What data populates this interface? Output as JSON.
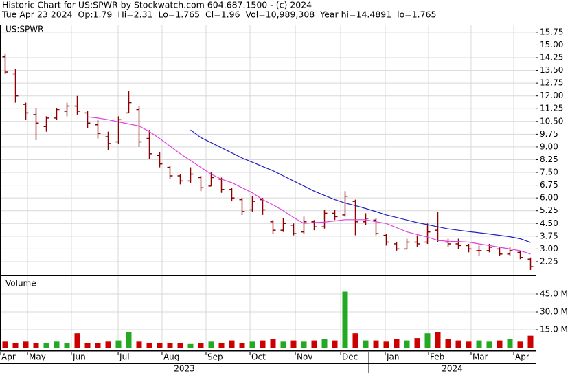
{
  "header": {
    "title": "Historic Chart for US:SPWR by Stockwatch.com 604.687.1500 - (c) 2024",
    "quote": "Tue Apr 23 2024  Op:1.79  Hi=2.31  Lo=1.765  Cl=1.96  Vol=10,989,308  Year hi=14.4891  lo=1.765"
  },
  "chart_data": [
    {
      "type": "ohlc",
      "title": "US:SPWR",
      "color": "#8b0000",
      "grid": true,
      "x": [
        0.5,
        1.5,
        2.5,
        3.5,
        4.5,
        5.5,
        6.5,
        7.5,
        8.5,
        9.5,
        10.5,
        11.5,
        12.5,
        13.5,
        14.5,
        15.5,
        16.5,
        17.5,
        18.5,
        19.5,
        20.5,
        21.5,
        22.5,
        23.5,
        24.5,
        25.5,
        26.5,
        27.5,
        28.5,
        29.5,
        30.5,
        31.5,
        32.5,
        33.5,
        34.5,
        35.5,
        36.5,
        37.5,
        38.5,
        39.5,
        40.5,
        41.5,
        42.5,
        43.5,
        44.5,
        45.5,
        46.5,
        47.5,
        48.5,
        49.5,
        50.5,
        51.5
      ],
      "open": [
        14.3,
        13.3,
        11.5,
        10.9,
        10.2,
        10.7,
        11.1,
        11.4,
        11.0,
        10.3,
        9.6,
        9.3,
        11.0,
        11.2,
        9.5,
        8.5,
        7.8,
        7.3,
        7.0,
        7.2,
        6.7,
        7.1,
        6.5,
        5.9,
        5.3,
        5.9,
        4.6,
        4.1,
        4.4,
        4.0,
        4.6,
        4.3,
        5.1,
        5.0,
        5.8,
        4.6,
        4.7,
        3.8,
        3.3,
        3.0,
        3.4,
        3.4,
        4.1,
        3.4,
        3.3,
        3.2,
        2.9,
        2.9,
        3.0,
        2.7,
        2.8,
        2.4
      ],
      "high": [
        14.5,
        13.6,
        11.6,
        11.3,
        10.8,
        11.3,
        11.6,
        12.0,
        11.1,
        10.6,
        9.9,
        10.8,
        12.3,
        11.4,
        10.0,
        8.7,
        7.9,
        7.4,
        7.8,
        7.3,
        7.5,
        7.2,
        6.6,
        6.0,
        6.1,
        6.0,
        4.7,
        4.8,
        4.5,
        4.9,
        4.7,
        5.3,
        5.3,
        6.4,
        5.9,
        5.1,
        4.8,
        3.9,
        3.4,
        3.6,
        3.8,
        4.5,
        5.2,
        3.6,
        3.6,
        3.3,
        3.2,
        3.3,
        3.1,
        3.1,
        2.9,
        2.5
      ],
      "low": [
        13.3,
        11.6,
        10.6,
        9.4,
        9.9,
        10.6,
        10.8,
        10.9,
        10.1,
        9.5,
        8.8,
        9.2,
        11.0,
        9.0,
        8.3,
        7.8,
        7.1,
        6.8,
        6.9,
        6.4,
        6.7,
        6.3,
        5.8,
        5.0,
        5.2,
        5.0,
        3.9,
        4.0,
        3.8,
        3.9,
        4.1,
        4.2,
        4.7,
        4.9,
        3.8,
        4.4,
        3.8,
        3.2,
        2.9,
        3.0,
        3.1,
        3.3,
        3.4,
        3.1,
        3.0,
        2.8,
        2.6,
        2.8,
        2.6,
        2.6,
        2.4,
        1.765
      ],
      "close": [
        13.4,
        12.0,
        11.0,
        10.4,
        10.7,
        11.2,
        11.4,
        11.1,
        10.4,
        9.8,
        9.2,
        10.6,
        11.6,
        9.3,
        8.6,
        8.0,
        7.3,
        7.0,
        7.4,
        6.6,
        7.2,
        6.5,
        6.0,
        5.2,
        5.8,
        5.3,
        4.1,
        4.5,
        3.9,
        4.6,
        4.3,
        5.1,
        4.9,
        6.1,
        4.6,
        4.8,
        3.9,
        3.4,
        3.0,
        3.4,
        3.3,
        4.0,
        3.5,
        3.3,
        3.2,
        3.0,
        2.9,
        3.1,
        2.7,
        2.9,
        2.5,
        1.96
      ],
      "overlays": [
        {
          "color": "#e040e0",
          "values": [
            null,
            null,
            null,
            null,
            null,
            null,
            null,
            null,
            10.77,
            10.7,
            10.6,
            10.47,
            10.35,
            10.23,
            9.9,
            9.5,
            9.05,
            8.6,
            8.2,
            7.8,
            7.4,
            7.1,
            6.9,
            6.6,
            6.3,
            5.9,
            5.6,
            5.25,
            4.85,
            4.5,
            4.55,
            4.58,
            4.65,
            4.72,
            4.72,
            4.72,
            4.6,
            4.5,
            4.25,
            4.0,
            3.85,
            3.7,
            3.5,
            3.45,
            3.43,
            3.4,
            3.3,
            3.2,
            3.1,
            3.0,
            2.9,
            2.7
          ]
        },
        {
          "color": "#2020c0",
          "values": [
            null,
            null,
            null,
            null,
            null,
            null,
            null,
            null,
            null,
            null,
            null,
            null,
            null,
            null,
            null,
            null,
            null,
            null,
            10.0,
            9.55,
            9.25,
            8.95,
            8.65,
            8.35,
            8.1,
            7.85,
            7.6,
            7.3,
            7.0,
            6.7,
            6.4,
            6.15,
            5.9,
            5.7,
            5.55,
            5.38,
            5.2,
            5.0,
            4.85,
            4.7,
            4.55,
            4.43,
            4.3,
            4.18,
            4.1,
            4.02,
            3.95,
            3.88,
            3.8,
            3.72,
            3.6,
            3.38
          ]
        }
      ],
      "xlim": [
        0,
        52
      ],
      "ylim": [
        1.48,
        16.15
      ],
      "yticks": [
        2.25,
        {
          "value": 3,
          "label": "3.00"
        },
        3.75,
        {
          "value": 4.5,
          "label": "4.50"
        },
        5.25,
        {
          "value": 6,
          "label": "6.00"
        },
        6.75,
        {
          "value": 7.5,
          "label": "7.50"
        },
        8.25,
        {
          "value": 9,
          "label": "9.00"
        },
        9.75,
        {
          "value": 10.5,
          "label": "10.50"
        },
        11.25,
        {
          "value": 12,
          "label": "12.00"
        },
        12.75,
        {
          "value": 13.5,
          "label": "13.50"
        },
        14.25,
        {
          "value": 15,
          "label": "15.00"
        },
        15.75
      ]
    },
    {
      "type": "bar",
      "title": "Volume",
      "up_color": "#22aa22",
      "down_color": "#cc0000",
      "grid": true,
      "values": [
        5,
        4,
        5,
        4,
        4,
        5,
        4,
        12,
        4,
        4,
        5,
        6,
        13,
        5,
        4,
        4,
        4,
        4,
        3,
        4,
        5,
        4,
        6,
        4,
        5,
        6,
        7,
        5,
        6,
        5,
        6,
        7,
        6,
        47,
        12,
        6,
        6,
        5,
        7,
        6,
        8,
        12,
        13,
        7,
        6,
        5,
        6,
        5,
        6,
        7,
        5,
        10
      ],
      "xlim": [
        0,
        52
      ],
      "ylim": [
        0,
        60
      ],
      "yticks": [
        {
          "value": 15,
          "label": "15.0 M"
        },
        {
          "value": 30,
          "label": "30.0 M"
        },
        {
          "value": 45,
          "label": "45.0 M"
        }
      ],
      "xticks": [
        {
          "value": 0,
          "label": "Apr"
        },
        {
          "value": 2.67,
          "label": "May"
        },
        {
          "value": 6.93,
          "label": "Jun"
        },
        {
          "value": 11.47,
          "label": "Jul"
        },
        {
          "value": 15.73,
          "label": "Aug"
        },
        {
          "value": 20,
          "label": "Sep"
        },
        {
          "value": 24.27,
          "label": "Oct"
        },
        {
          "value": 28.67,
          "label": "Nov"
        },
        {
          "value": 33.07,
          "label": "Dec"
        },
        {
          "value": 37.4,
          "label": "Jan"
        },
        {
          "value": 41.6,
          "label": "Feb"
        },
        {
          "value": 45.73,
          "label": "Mar"
        },
        {
          "value": 49.87,
          "label": "Apr"
        }
      ],
      "year_labels": [
        {
          "value": 17.9,
          "label": "2023"
        },
        {
          "value": 43.9,
          "label": "2024"
        }
      ]
    }
  ]
}
